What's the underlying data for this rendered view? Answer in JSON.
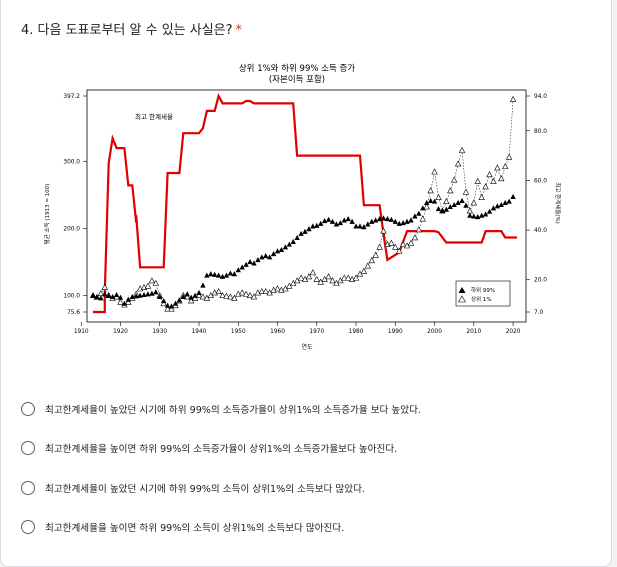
{
  "question": {
    "title": "4. 다음 도표로부터 알 수 있는 사실은?",
    "required_mark": "*"
  },
  "chart_data": {
    "type": "line",
    "title": "상위 1%와 하위 99% 소득 증가",
    "subtitle": "(자본이득 포함)",
    "xlabel": "연도",
    "ylabel_left": "평균 소득 (1913 = 100)",
    "ylabel_right": "최고 한계세율(%)",
    "annotation": "최고 한계세율",
    "x_ticks": [
      1910,
      1920,
      1930,
      1940,
      1950,
      1960,
      1970,
      1980,
      1990,
      2000,
      2010,
      2020
    ],
    "y_left_ticks": [
      "75.6",
      "100.0",
      "200.0",
      "300.0",
      "397.2"
    ],
    "y_right_ticks": [
      "7.0",
      "20.0",
      "40.0",
      "60.0",
      "80.0",
      "94.0"
    ],
    "xlim": [
      1913,
      2021
    ],
    "ylim_left": [
      75.6,
      397.2
    ],
    "ylim_right": [
      7,
      94
    ],
    "legend": {
      "position": "bottom-right",
      "items": [
        "하위 99%",
        "상위 1%"
      ]
    },
    "series": [
      {
        "name": "하위 99%",
        "axis": "left",
        "marker": "filled-triangle",
        "x": [
          1913,
          1914,
          1915,
          1916,
          1917,
          1918,
          1919,
          1920,
          1921,
          1922,
          1923,
          1924,
          1925,
          1926,
          1927,
          1928,
          1929,
          1930,
          1931,
          1932,
          1933,
          1934,
          1935,
          1936,
          1937,
          1938,
          1939,
          1940,
          1941,
          1942,
          1943,
          1944,
          1945,
          1946,
          1947,
          1948,
          1949,
          1950,
          1951,
          1952,
          1953,
          1954,
          1955,
          1956,
          1957,
          1958,
          1959,
          1960,
          1961,
          1962,
          1963,
          1964,
          1965,
          1966,
          1967,
          1968,
          1969,
          1970,
          1971,
          1972,
          1973,
          1974,
          1975,
          1976,
          1977,
          1978,
          1979,
          1980,
          1981,
          1982,
          1983,
          1984,
          1985,
          1986,
          1987,
          1988,
          1989,
          1990,
          1991,
          1992,
          1993,
          1994,
          1995,
          1996,
          1997,
          1998,
          1999,
          2000,
          2001,
          2002,
          2003,
          2004,
          2005,
          2006,
          2007,
          2008,
          2009,
          2010,
          2011,
          2012,
          2013,
          2014,
          2015,
          2016,
          2017,
          2018,
          2019,
          2020
        ],
        "values": [
          100,
          98,
          96,
          102,
          100,
          98,
          101,
          97,
          88,
          94,
          98,
          99,
          100,
          101,
          102,
          103,
          105,
          98,
          92,
          85,
          84,
          88,
          93,
          98,
          102,
          97,
          100,
          104,
          115,
          130,
          132,
          131,
          130,
          128,
          130,
          133,
          132,
          138,
          142,
          146,
          150,
          148,
          153,
          157,
          159,
          157,
          162,
          166,
          168,
          172,
          176,
          180,
          186,
          192,
          195,
          199,
          203,
          204,
          207,
          211,
          213,
          210,
          206,
          208,
          212,
          214,
          210,
          203,
          203,
          202,
          206,
          210,
          212,
          214,
          215,
          214,
          213,
          210,
          207,
          208,
          210,
          212,
          218,
          222,
          230,
          238,
          241,
          240,
          229,
          226,
          228,
          232,
          235,
          238,
          241,
          234,
          219,
          218,
          217,
          219,
          221,
          225,
          230,
          233,
          235,
          238,
          240,
          247
        ]
      },
      {
        "name": "상위 1%",
        "axis": "left",
        "marker": "hollow-triangle",
        "x": [
          1913,
          1914,
          1915,
          1916,
          1917,
          1918,
          1919,
          1920,
          1921,
          1922,
          1923,
          1924,
          1925,
          1926,
          1927,
          1928,
          1929,
          1930,
          1931,
          1932,
          1933,
          1934,
          1935,
          1936,
          1937,
          1938,
          1939,
          1940,
          1941,
          1942,
          1943,
          1944,
          1945,
          1946,
          1947,
          1948,
          1949,
          1950,
          1951,
          1952,
          1953,
          1954,
          1955,
          1956,
          1957,
          1958,
          1959,
          1960,
          1961,
          1962,
          1963,
          1964,
          1965,
          1966,
          1967,
          1968,
          1969,
          1970,
          1971,
          1972,
          1973,
          1974,
          1975,
          1976,
          1977,
          1978,
          1979,
          1980,
          1981,
          1982,
          1983,
          1984,
          1985,
          1986,
          1987,
          1988,
          1989,
          1990,
          1991,
          1992,
          1993,
          1994,
          1995,
          1996,
          1997,
          1998,
          1999,
          2000,
          2001,
          2002,
          2003,
          2004,
          2005,
          2006,
          2007,
          2008,
          2009,
          2010,
          2011,
          2012,
          2013,
          2014,
          2015,
          2016,
          2017,
          2018,
          2019,
          2020
        ],
        "values": [
          100,
          97,
          103,
          112,
          100,
          96,
          98,
          90,
          86,
          90,
          96,
          102,
          110,
          112,
          114,
          122,
          118,
          100,
          88,
          80,
          80,
          85,
          92,
          100,
          98,
          92,
          96,
          100,
          98,
          96,
          100,
          104,
          106,
          100,
          99,
          98,
          96,
          102,
          104,
          102,
          100,
          98,
          104,
          106,
          106,
          104,
          108,
          110,
          108,
          110,
          114,
          118,
          122,
          126,
          124,
          128,
          134,
          124,
          120,
          124,
          128,
          122,
          118,
          122,
          126,
          126,
          124,
          126,
          132,
          136,
          144,
          152,
          160,
          172,
          196,
          176,
          178,
          172,
          166,
          176,
          174,
          178,
          186,
          198,
          214,
          232,
          256,
          284,
          246,
          226,
          240,
          256,
          272,
          296,
          316,
          254,
          226,
          238,
          270,
          246,
          262,
          280,
          270,
          290,
          274,
          292,
          306,
          392
        ]
      },
      {
        "name": "최고 한계세율",
        "axis": "right",
        "marker": "line",
        "x": [
          1913,
          1916,
          1916,
          1917,
          1918,
          1919,
          1921,
          1922,
          1923,
          1924,
          1924,
          1925,
          1931,
          1932,
          1935,
          1936,
          1940,
          1941,
          1942,
          1944,
          1945,
          1946,
          1951,
          1952,
          1953,
          1954,
          1964,
          1965,
          1981,
          1982,
          1986,
          1987,
          1988,
          1991,
          1993,
          2000,
          2001,
          2003,
          2012,
          2013,
          2017,
          2018,
          2021
        ],
        "values": [
          7,
          7,
          15,
          67,
          77,
          73,
          73,
          58,
          58,
          43,
          46,
          25,
          25,
          63,
          63,
          79,
          79,
          81,
          88,
          88,
          94,
          91,
          91,
          92,
          92,
          91,
          91,
          70,
          70,
          50,
          50,
          38.5,
          28,
          31,
          39.6,
          39.6,
          39.1,
          35,
          35,
          39.6,
          39.6,
          37,
          37
        ]
      }
    ]
  },
  "answers": {
    "options": [
      "최고한계세율이 높았던 시기에 하위 99%의 소득증가율이 상위1%의 소득증가율 보다 높았다.",
      "최고한계세율을 높이면 하위 99%의 소득증가율이 상위1%의 소득증가율보다 높아진다.",
      "최고한계세율이 높았던 시기에 하위 99%의 소득이 상위1%의 소득보다 많았다.",
      "최고한계세율을 높이면 하위 99%의 소득이 상위1%의 소득보다 많아진다."
    ]
  }
}
